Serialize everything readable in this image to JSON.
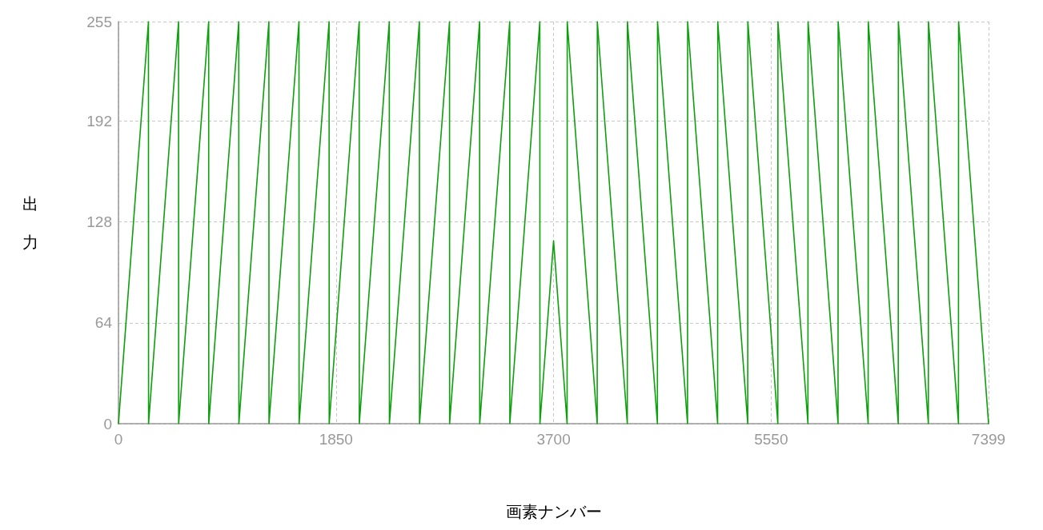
{
  "chart_data": {
    "type": "line",
    "xlabel": "画素ナンバー",
    "ylabel": "出力",
    "xlim": [
      0,
      7399
    ],
    "xticks": [
      0,
      1850,
      3700,
      5550,
      7399
    ],
    "ylim": [
      0,
      255
    ],
    "yticks": [
      0,
      64,
      128,
      192,
      255
    ],
    "grid": true,
    "marker": "none",
    "line_style": "solid",
    "series": [
      {
        "color": "#0ca00c",
        "x": [
          0,
          255,
          256,
          511,
          512,
          767,
          768,
          1023,
          1024,
          1279,
          1280,
          1535,
          1536,
          1791,
          1792,
          2047,
          2048,
          2303,
          2304,
          2559,
          2560,
          2815,
          2816,
          3071,
          3072,
          3327,
          3328,
          3583,
          3584,
          3700,
          3815,
          3816,
          4071,
          4072,
          4327,
          4328,
          4583,
          4584,
          4839,
          4840,
          5095,
          5096,
          5351,
          5352,
          5607,
          5608,
          5863,
          5864,
          6119,
          6120,
          6375,
          6376,
          6631,
          6632,
          6887,
          6888,
          7143,
          7144,
          7399
        ],
        "values": [
          0,
          255,
          0,
          255,
          0,
          255,
          0,
          255,
          0,
          255,
          0,
          255,
          0,
          255,
          0,
          255,
          0,
          255,
          0,
          255,
          0,
          255,
          0,
          255,
          0,
          255,
          0,
          255,
          0,
          116,
          0,
          255,
          0,
          255,
          0,
          255,
          0,
          255,
          0,
          255,
          0,
          255,
          0,
          255,
          0,
          255,
          0,
          255,
          0,
          255,
          0,
          255,
          0,
          255,
          0,
          255,
          0,
          255,
          0
        ]
      }
    ]
  }
}
